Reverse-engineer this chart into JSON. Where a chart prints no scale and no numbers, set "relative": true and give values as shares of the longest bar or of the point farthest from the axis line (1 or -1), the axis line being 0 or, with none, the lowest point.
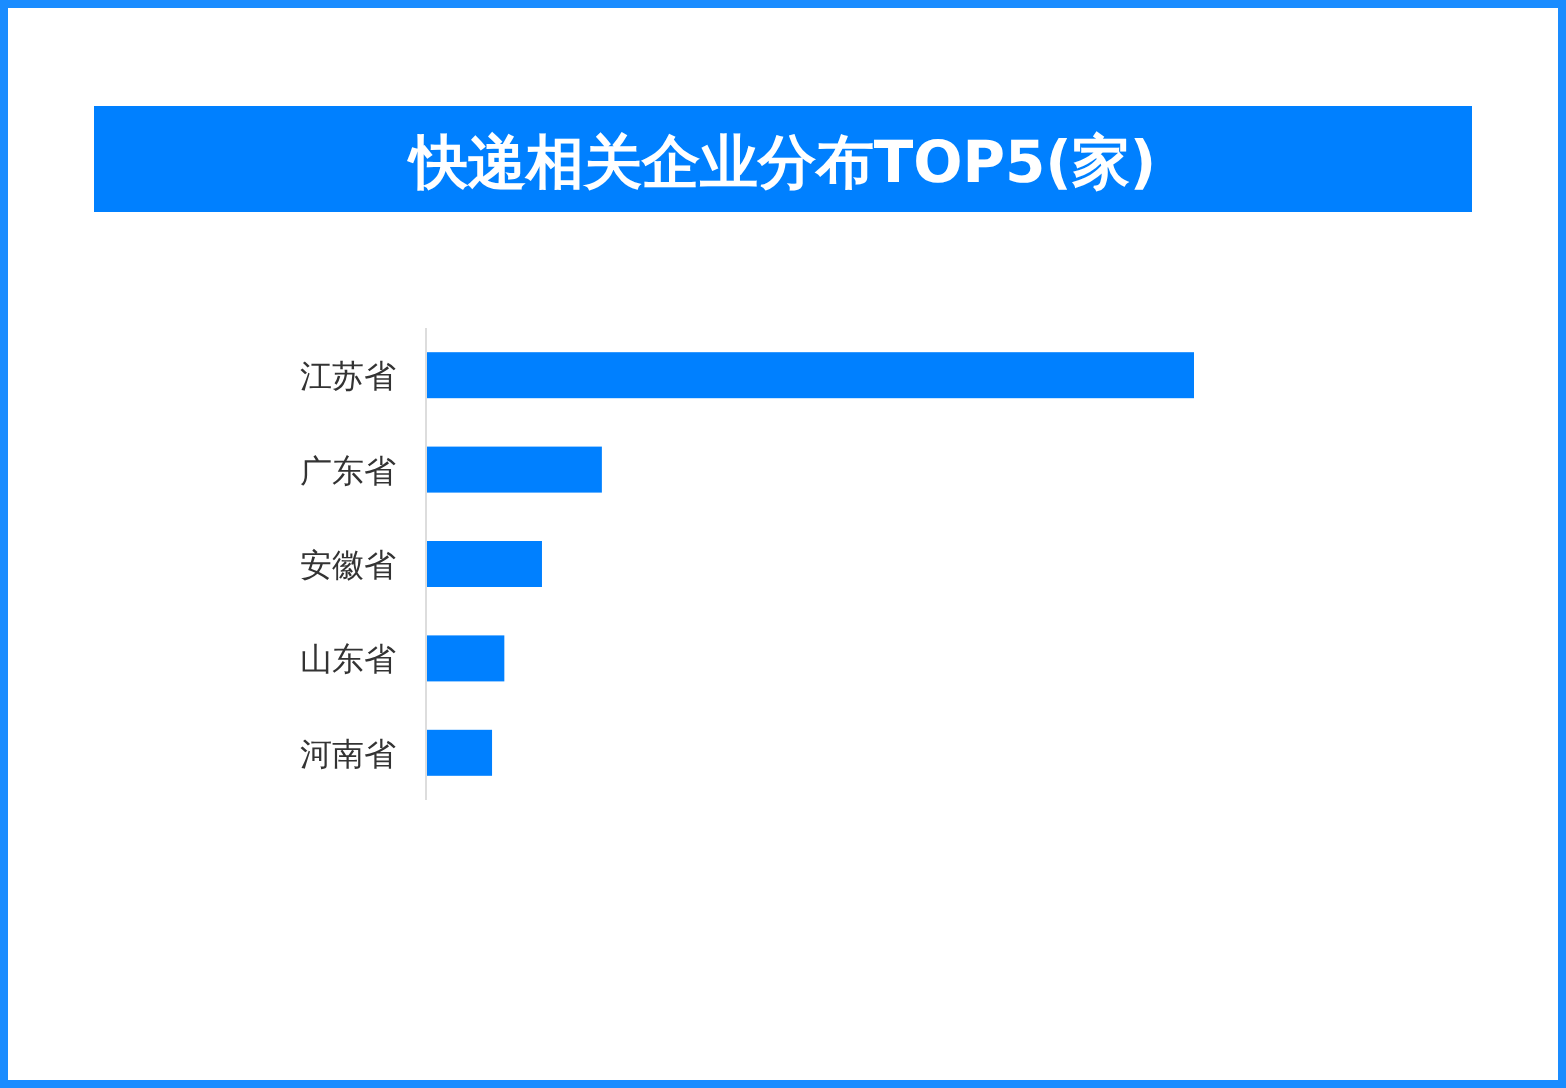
{
  "chart_data": {
    "type": "bar",
    "title": "快递相关企业分布TOP5(家)",
    "orientation": "horizontal",
    "relative": true,
    "categories": [
      "江苏省",
      "广东省",
      "安徽省",
      "山东省",
      "河南省"
    ],
    "values": [
      1,
      0.229,
      0.151,
      0.102,
      0.086
    ],
    "color": "#0080ff"
  }
}
